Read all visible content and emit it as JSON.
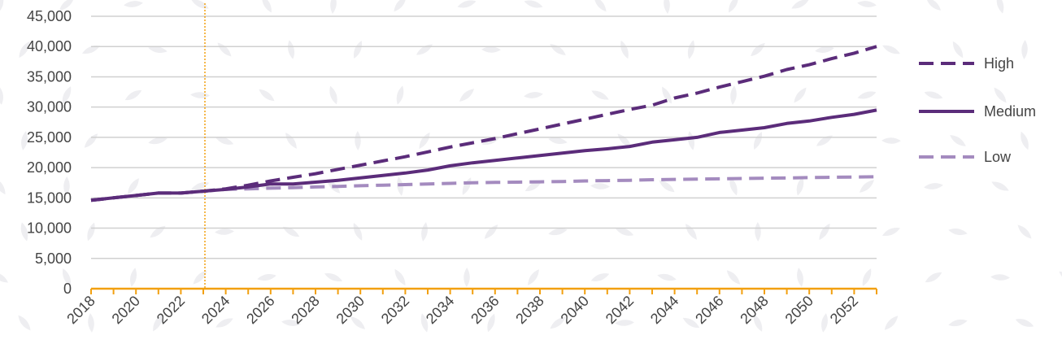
{
  "chart_data": {
    "type": "line",
    "x": [
      2018,
      2019,
      2020,
      2021,
      2022,
      2023,
      2024,
      2025,
      2026,
      2027,
      2028,
      2029,
      2030,
      2031,
      2032,
      2033,
      2034,
      2035,
      2036,
      2037,
      2038,
      2039,
      2040,
      2041,
      2042,
      2043,
      2044,
      2045,
      2046,
      2047,
      2048,
      2049,
      2050,
      2051,
      2052,
      2053
    ],
    "x_tick_labels": [
      "2018",
      "2020",
      "2022",
      "2024",
      "2026",
      "2028",
      "2030",
      "2032",
      "2034",
      "2036",
      "2038",
      "2040",
      "2042",
      "2044",
      "2046",
      "2048",
      "2050",
      "2052"
    ],
    "y_tick_labels": [
      "0",
      "5,000",
      "10,000",
      "15,000",
      "20,000",
      "25,000",
      "30,000",
      "35,000",
      "40,000",
      "45,000"
    ],
    "ylim": [
      0,
      45000
    ],
    "grid": true,
    "legend_position": "right",
    "marker_year": 2023,
    "series": [
      {
        "name": "High",
        "style": "dashed",
        "color": "#5b2c7a",
        "values": [
          14600,
          15000,
          15400,
          15800,
          15800,
          16100,
          16500,
          17100,
          17800,
          18400,
          19000,
          19700,
          20400,
          21100,
          21800,
          22600,
          23400,
          24100,
          24800,
          25600,
          26400,
          27200,
          28000,
          28800,
          29600,
          30300,
          31500,
          32300,
          33300,
          34200,
          35100,
          36200,
          37000,
          38000,
          38900,
          40000
        ]
      },
      {
        "name": "Medium",
        "style": "solid",
        "color": "#5b2c7a",
        "values": [
          14600,
          15000,
          15400,
          15800,
          15800,
          16100,
          16400,
          16800,
          17300,
          17300,
          17600,
          17900,
          18300,
          18700,
          19100,
          19600,
          20300,
          20800,
          21200,
          21600,
          22000,
          22400,
          22800,
          23100,
          23500,
          24200,
          24600,
          25000,
          25800,
          26200,
          26600,
          27300,
          27700,
          28300,
          28800,
          29500
        ]
      },
      {
        "name": "Low",
        "style": "dashed",
        "color": "#a48bbf",
        "values": [
          14600,
          15000,
          15400,
          15800,
          15800,
          16100,
          16400,
          16500,
          16600,
          16700,
          16800,
          16900,
          17000,
          17100,
          17200,
          17300,
          17400,
          17500,
          17550,
          17600,
          17650,
          17700,
          17800,
          17850,
          17900,
          18000,
          18050,
          18100,
          18150,
          18200,
          18250,
          18300,
          18350,
          18400,
          18450,
          18500
        ]
      }
    ],
    "colors": {
      "grid": "#d0d0d0",
      "x_axis": "#f2a010",
      "marker": "#f2a010"
    }
  }
}
